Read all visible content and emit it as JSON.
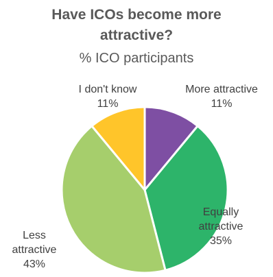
{
  "chart_data": {
    "type": "pie",
    "title_lines": [
      "Have ICOs become more",
      "attractive?"
    ],
    "subtitle": "% ICO participants",
    "slices": [
      {
        "label": "More attractive",
        "value": 11,
        "pct_label": "11%",
        "color": "#7E4FA3"
      },
      {
        "label_lines": [
          "Equally",
          "attractive"
        ],
        "value": 35,
        "pct_label": "35%",
        "color": "#2DB46A"
      },
      {
        "label_lines": [
          "Less",
          "attractive"
        ],
        "value": 43,
        "pct_label": "43%",
        "color": "#A6CE6C"
      },
      {
        "label": "I don't know",
        "value": 11,
        "pct_label": "11%",
        "color": "#FFC52A"
      }
    ]
  }
}
